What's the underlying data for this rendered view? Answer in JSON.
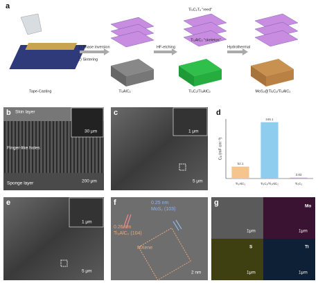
{
  "panel_labels": [
    "a",
    "b",
    "c",
    "d",
    "e",
    "f",
    "g"
  ],
  "schematic": {
    "tape_casting": "Tape-Casting",
    "step1": "1) Phase inversion",
    "step2": "2) Sintering",
    "etching": "HF-etching",
    "hydrothermal": "Hydrothermal",
    "reed": "Ti₃C₂Tₓ \"reed\"",
    "skeleton": "Ti₃AlC₂ \"skeleton\"",
    "stages": [
      "Ti₃AlC₂",
      "Ti₃C₂/Ti₃AlC₂",
      "MoS₂@Ti₃C₂/Ti₃AlC₂"
    ]
  },
  "panel_b": {
    "skin": "Skin layer",
    "finger": "Finger-like holes",
    "sponge": "Sponge layer",
    "inset_scale": "30 μm",
    "scale": "200 μm"
  },
  "panel_c": {
    "inset_scale": "1 μm",
    "scale": "5 μm"
  },
  "panel_e": {
    "inset_scale": "1 μm",
    "scale": "5 μm"
  },
  "panel_f": {
    "d1": "0.25 nm",
    "p1": "MoS₂ (103)",
    "d2": "0.26 nm",
    "p2": "Ti₃AlC₂ (104)",
    "region": "MXene",
    "scale": "2 nm"
  },
  "panel_g": {
    "elements": [
      "Mo",
      "S",
      "Ti"
    ],
    "scales": [
      "1μm",
      "1μm",
      "1μm",
      "1μm"
    ]
  },
  "chart_data": {
    "type": "bar",
    "y_label": "Cₐ (mF cm⁻²)",
    "categories": [
      "Ti₃AlC₂",
      "Ti₃C₂/Ti₃AlC₂",
      "Ti₃C₂"
    ],
    "values": [
      52.1,
      246.1,
      3.83
    ],
    "colors": [
      "#f6c58e",
      "#8fcdef",
      "#bba5da"
    ],
    "ylim": [
      0,
      260
    ]
  }
}
